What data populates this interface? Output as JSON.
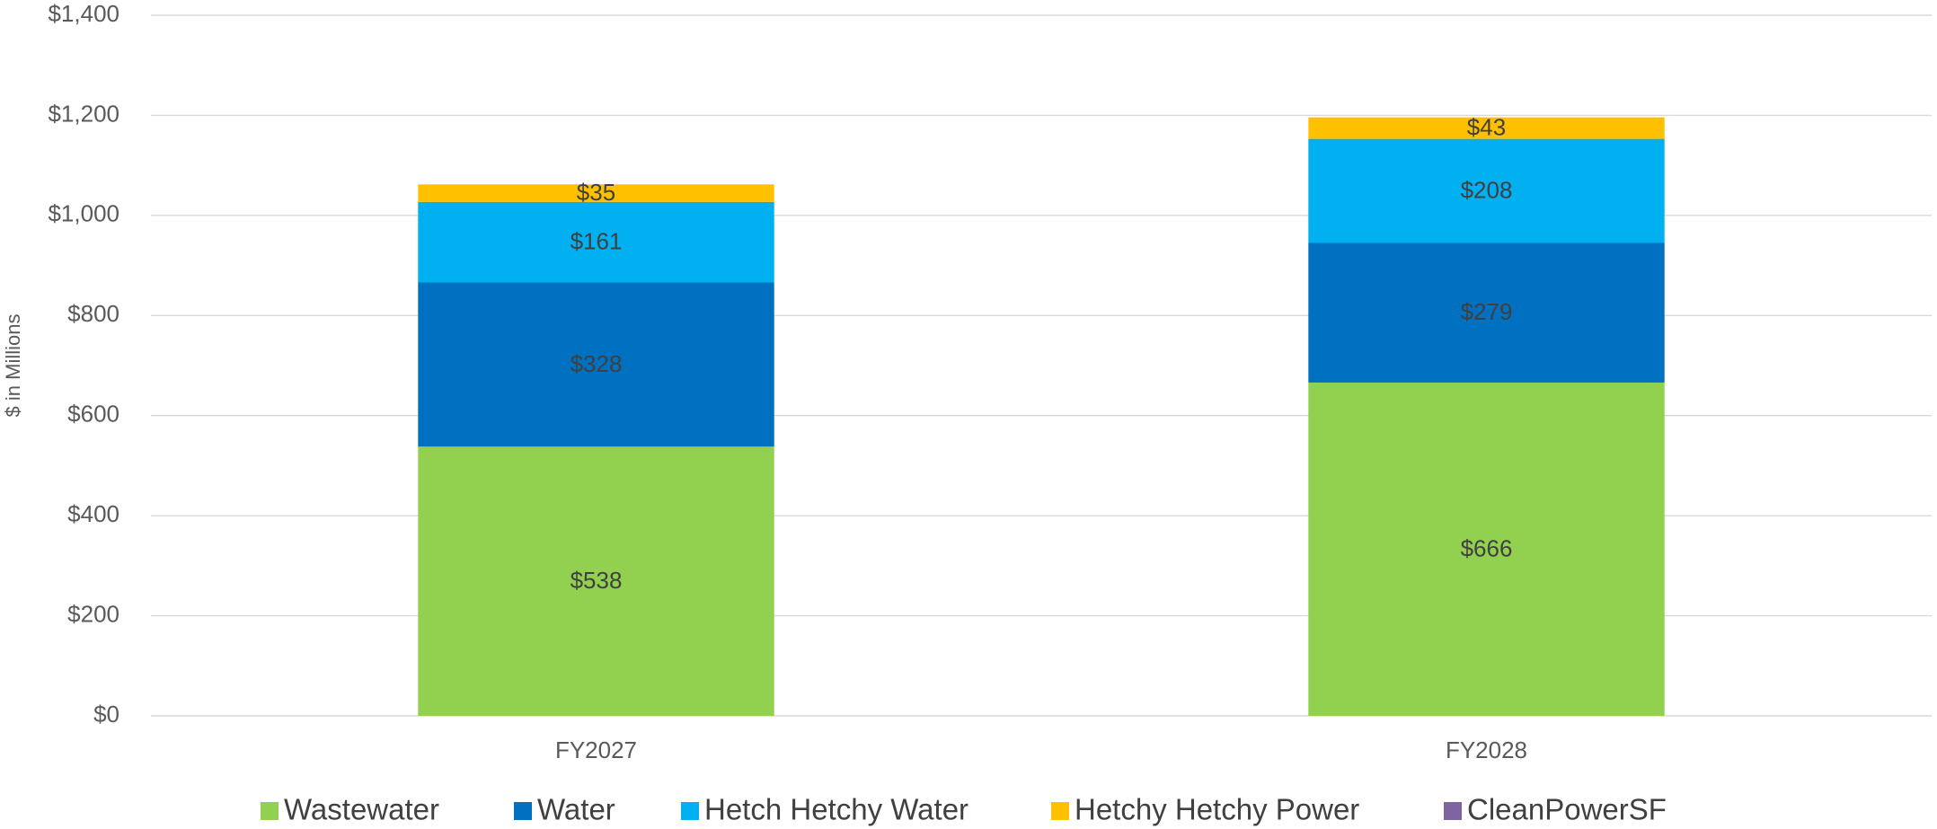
{
  "chart_data": {
    "type": "stacked_bar",
    "y_label": "$ in Millions",
    "categories": [
      "FY2027",
      "FY2028"
    ],
    "series": [
      {
        "name": "Wastewater",
        "color": "#92d050",
        "values": [
          538,
          666
        ],
        "value_labels": [
          "$538",
          "$666"
        ]
      },
      {
        "name": "Water",
        "color": "#0070c0",
        "values": [
          328,
          279
        ],
        "value_labels": [
          "$328",
          "$279"
        ]
      },
      {
        "name": "Hetch Hetchy Water",
        "color": "#00b0f0",
        "values": [
          161,
          208
        ],
        "value_labels": [
          "$161",
          "$208"
        ]
      },
      {
        "name": "Hetchy Hetchy Power",
        "color": "#ffc000",
        "values": [
          35,
          43
        ],
        "value_labels": [
          "$35",
          "$43"
        ]
      },
      {
        "name": "CleanPowerSF",
        "color": "#8064a2",
        "values": [
          0,
          0
        ]
      }
    ],
    "ylim": [
      0,
      1400
    ],
    "yticks": [
      {
        "value": 0,
        "label": "$0"
      },
      {
        "value": 200,
        "label": "$200"
      },
      {
        "value": 400,
        "label": "$400"
      },
      {
        "value": 600,
        "label": "$600"
      },
      {
        "value": 800,
        "label": "$800"
      },
      {
        "value": 1000,
        "label": "$1,000"
      },
      {
        "value": 1200,
        "label": "$1,200"
      },
      {
        "value": 1400,
        "label": "$1,400"
      }
    ],
    "grid": true,
    "legend": "bottom"
  }
}
